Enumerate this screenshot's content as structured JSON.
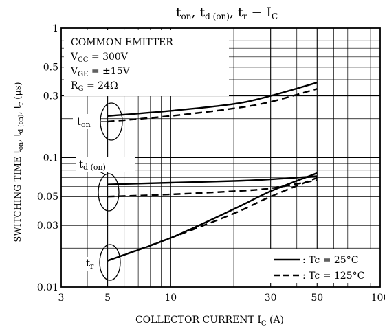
{
  "chart_data": {
    "type": "line",
    "title": {
      "main": "t",
      "sub_on": "on",
      "comma1": ", t",
      "sub_don": "d (on)",
      "comma2": ", t",
      "sub_r": "r",
      "dash": " − I",
      "sub_c": "C"
    },
    "xlabel": {
      "main": "COLLECTOR CURRENT   I",
      "sub": "C",
      "unit": "   (A)"
    },
    "ylabel": {
      "main": "SWITCHING TIME   t",
      "s1": "on",
      "t2": ", t",
      "s2": "d (on)",
      "t3": ", t",
      "s3": "r",
      "unit": "   (μs)"
    },
    "x_scale": "log",
    "y_scale": "log",
    "xlim": [
      3,
      100
    ],
    "ylim": [
      0.01,
      1
    ],
    "x_ticks": [
      3,
      5,
      10,
      30,
      50,
      100
    ],
    "x_tick_labels": [
      "3",
      "5",
      "10",
      "30",
      "50",
      "100"
    ],
    "y_ticks": [
      0.01,
      0.03,
      0.05,
      0.1,
      0.3,
      0.5,
      1
    ],
    "y_tick_labels": [
      "0.01",
      "0.03",
      "0.05",
      "0.1",
      "0.3",
      "0.5",
      "1"
    ],
    "grid": true,
    "conditions": {
      "line1": "COMMON EMITTER",
      "line2_main": "V",
      "line2_sub": "CC",
      "line2_val": " = 300V",
      "line3_main": "V",
      "line3_sub": "GE",
      "line3_val": " = ±15V",
      "line4_main": "R",
      "line4_sub": "G",
      "line4_val": " = 24Ω"
    },
    "curve_labels": {
      "ton": {
        "main": "t",
        "sub": "on"
      },
      "tdon": {
        "main": "t",
        "sub": "d (on)"
      },
      "tr": {
        "main": "t",
        "sub": "r"
      }
    },
    "legend": {
      "position": "bottom-right",
      "solid": ": Tc = 25°C",
      "dashed": ": Tc = 125°C"
    },
    "series": [
      {
        "group": "ton",
        "style": "solid",
        "x": [
          5,
          10,
          20,
          30,
          50
        ],
        "y": [
          0.21,
          0.23,
          0.26,
          0.3,
          0.38
        ]
      },
      {
        "group": "ton",
        "style": "dashed",
        "x": [
          5,
          10,
          20,
          30,
          50
        ],
        "y": [
          0.19,
          0.21,
          0.24,
          0.27,
          0.34
        ]
      },
      {
        "group": "tdon",
        "style": "solid",
        "x": [
          5,
          10,
          20,
          30,
          50
        ],
        "y": [
          0.062,
          0.064,
          0.066,
          0.068,
          0.072
        ]
      },
      {
        "group": "tdon",
        "style": "dashed",
        "x": [
          5,
          10,
          20,
          30,
          50
        ],
        "y": [
          0.05,
          0.052,
          0.055,
          0.058,
          0.067
        ]
      },
      {
        "group": "tr",
        "style": "solid",
        "x": [
          5,
          10,
          20,
          30,
          50
        ],
        "y": [
          0.016,
          0.024,
          0.04,
          0.055,
          0.076
        ]
      },
      {
        "group": "tr",
        "style": "dashed",
        "x": [
          5,
          10,
          20,
          30,
          50
        ],
        "y": [
          0.016,
          0.024,
          0.037,
          0.05,
          0.07
        ]
      }
    ]
  }
}
